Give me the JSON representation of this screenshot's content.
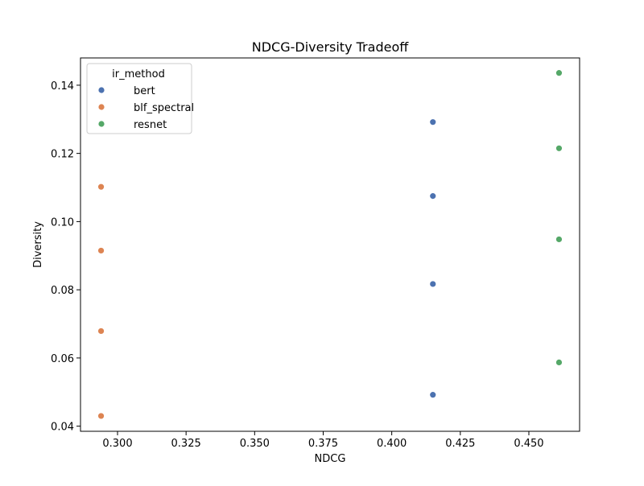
{
  "chart_data": {
    "type": "scatter",
    "title": "NDCG-Diversity Tradeoff",
    "xlabel": "NDCG",
    "ylabel": "Diversity",
    "xlim": [
      0.2865,
      0.4685
    ],
    "ylim": [
      0.0385,
      0.148
    ],
    "x_ticks": [
      "0.300",
      "0.325",
      "0.350",
      "0.375",
      "0.400",
      "0.425",
      "0.450"
    ],
    "x_tick_values": [
      0.3,
      0.325,
      0.35,
      0.375,
      0.4,
      0.425,
      0.45
    ],
    "y_ticks": [
      "0.04",
      "0.06",
      "0.08",
      "0.10",
      "0.12",
      "0.14"
    ],
    "y_tick_values": [
      0.04,
      0.06,
      0.08,
      0.1,
      0.12,
      0.14
    ],
    "grid": false,
    "legend": {
      "title": "ir_method",
      "placement": "upper-left"
    },
    "series": [
      {
        "name": "bert",
        "color": "#4c72b0",
        "points": [
          {
            "x": 0.415,
            "y": 0.1292
          },
          {
            "x": 0.415,
            "y": 0.1075
          },
          {
            "x": 0.415,
            "y": 0.0817
          },
          {
            "x": 0.415,
            "y": 0.0492
          }
        ]
      },
      {
        "name": "blf_spectral",
        "color": "#dd8452",
        "points": [
          {
            "x": 0.294,
            "y": 0.1102
          },
          {
            "x": 0.294,
            "y": 0.0915
          },
          {
            "x": 0.294,
            "y": 0.0679
          },
          {
            "x": 0.294,
            "y": 0.043
          }
        ]
      },
      {
        "name": "resnet",
        "color": "#55a868",
        "points": [
          {
            "x": 0.461,
            "y": 0.1436
          },
          {
            "x": 0.461,
            "y": 0.1215
          },
          {
            "x": 0.461,
            "y": 0.0948
          },
          {
            "x": 0.461,
            "y": 0.0587
          }
        ]
      }
    ]
  }
}
